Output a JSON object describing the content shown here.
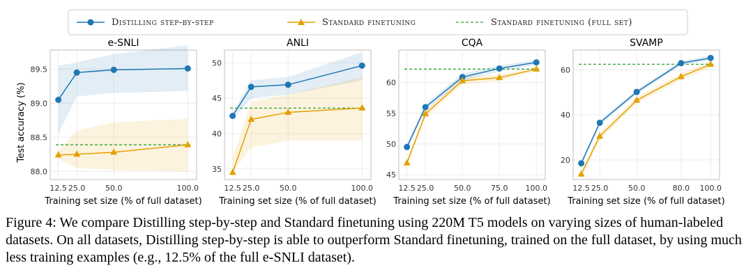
{
  "legend": {
    "distill": "Distilling step-by-step",
    "standard": "Standard finetuning",
    "full": "Standard finetuning (full set)"
  },
  "colors": {
    "distill": "#1f77b4",
    "standard": "#e69f00",
    "full": "#2ca02c"
  },
  "ylabel": "Test accuracy (%)",
  "caption": "Figure 4: We compare Distilling step-by-step and Standard finetuning using 220M T5 models on varying sizes of human-labeled datasets. On all datasets, Distilling step-by-step is able to outperform Standard finetuning, trained on the full dataset, by using much less training examples (e.g., 12.5% of the full e-SNLI dataset).",
  "chart_data": [
    {
      "type": "line",
      "title": "e-SNLI",
      "xlabel": "Training set size (% of full dataset)",
      "ylabel": "Test accuracy (%)",
      "x": [
        12.5,
        25.0,
        50.0,
        100.0
      ],
      "xtick_labels": [
        "12.5",
        "25.0",
        "50.0",
        "100.0"
      ],
      "xlim": [
        7,
        106
      ],
      "ylim": [
        87.88,
        89.78
      ],
      "yticks": [
        88.0,
        88.5,
        89.0,
        89.5
      ],
      "ytick_labels": [
        "88.0",
        "88.5",
        "89.0",
        "89.5"
      ],
      "series": [
        {
          "name": "Distilling step-by-step",
          "values": [
            89.05,
            89.45,
            89.49,
            89.51
          ],
          "band_low": [
            88.55,
            89.1,
            89.15,
            89.18
          ],
          "band_high": [
            89.55,
            89.6,
            89.72,
            89.85
          ]
        },
        {
          "name": "Standard finetuning",
          "values": [
            88.24,
            88.25,
            88.28,
            88.39
          ],
          "band_low": [
            88.18,
            88.05,
            88.02,
            88.0
          ],
          "band_high": [
            88.3,
            88.6,
            88.72,
            88.77
          ]
        }
      ],
      "full_set": 88.39
    },
    {
      "type": "line",
      "title": "ANLI",
      "xlabel": "Training set size (% of full dataset)",
      "ylabel": "",
      "x": [
        12.5,
        25.0,
        50.0,
        100.0
      ],
      "xtick_labels": [
        "12.5",
        "25.0",
        "50.0",
        "100.0"
      ],
      "xlim": [
        7,
        106
      ],
      "ylim": [
        33.5,
        51.8
      ],
      "yticks": [
        35,
        40,
        45,
        50
      ],
      "ytick_labels": [
        "35",
        "40",
        "45",
        "50"
      ],
      "series": [
        {
          "name": "Distilling step-by-step",
          "values": [
            42.5,
            46.6,
            46.9,
            49.6
          ],
          "band_low": [
            42.0,
            45.0,
            45.5,
            47.5
          ],
          "band_high": [
            43.0,
            47.5,
            48.0,
            51.5
          ]
        },
        {
          "name": "Standard finetuning",
          "values": [
            34.5,
            42.0,
            43.0,
            43.6
          ],
          "band_low": [
            34.5,
            38.0,
            39.0,
            39.0
          ],
          "band_high": [
            36.5,
            44.5,
            45.5,
            48.0
          ]
        }
      ],
      "full_set": 43.6
    },
    {
      "type": "line",
      "title": "CQA",
      "xlabel": "Training set size (% of full dataset)",
      "ylabel": "",
      "x": [
        12.5,
        25.0,
        50.0,
        75.0,
        100.0
      ],
      "xtick_labels": [
        "12.5",
        "25.0",
        "50.0",
        "75.0",
        "100.0"
      ],
      "xlim": [
        7,
        106
      ],
      "ylim": [
        44.2,
        65.3
      ],
      "yticks": [
        45,
        50,
        55,
        60
      ],
      "ytick_labels": [
        "45",
        "50",
        "55",
        "60"
      ],
      "series": [
        {
          "name": "Distilling step-by-step",
          "values": [
            49.5,
            56.0,
            60.9,
            62.3,
            63.3
          ],
          "band_low": [
            49.0,
            55.5,
            60.3,
            61.8,
            62.9
          ],
          "band_high": [
            50.0,
            56.5,
            61.5,
            62.8,
            63.7
          ]
        },
        {
          "name": "Standard finetuning",
          "values": [
            46.9,
            54.9,
            60.3,
            60.8,
            62.2
          ],
          "band_low": [
            46.4,
            54.3,
            59.7,
            60.3,
            61.8
          ],
          "band_high": [
            47.4,
            55.4,
            60.9,
            61.3,
            62.6
          ]
        }
      ],
      "full_set": 62.2
    },
    {
      "type": "line",
      "title": "SVAMP",
      "xlabel": "Training set size (% of full dataset)",
      "ylabel": "",
      "x": [
        12.5,
        25.0,
        50.0,
        80.0,
        100.0
      ],
      "xtick_labels": [
        "12.5",
        "25.0",
        "50.0",
        "80.0",
        "100.0"
      ],
      "xlim": [
        7,
        106
      ],
      "ylim": [
        11.3,
        68.8
      ],
      "yticks": [
        20,
        40,
        60
      ],
      "ytick_labels": [
        "20",
        "40",
        "60"
      ],
      "series": [
        {
          "name": "Distilling step-by-step",
          "values": [
            18.5,
            36.5,
            50.2,
            63.0,
            65.3
          ],
          "band_low": [
            17.5,
            35.5,
            49.2,
            62.0,
            64.3
          ],
          "band_high": [
            19.5,
            37.5,
            51.2,
            64.0,
            66.3
          ]
        },
        {
          "name": "Standard finetuning",
          "values": [
            13.7,
            30.5,
            46.5,
            57.0,
            62.5
          ],
          "band_low": [
            12.5,
            29.0,
            45.0,
            55.5,
            61.0
          ],
          "band_high": [
            15.0,
            32.0,
            48.0,
            58.5,
            64.0
          ]
        }
      ],
      "full_set": 62.5
    }
  ]
}
